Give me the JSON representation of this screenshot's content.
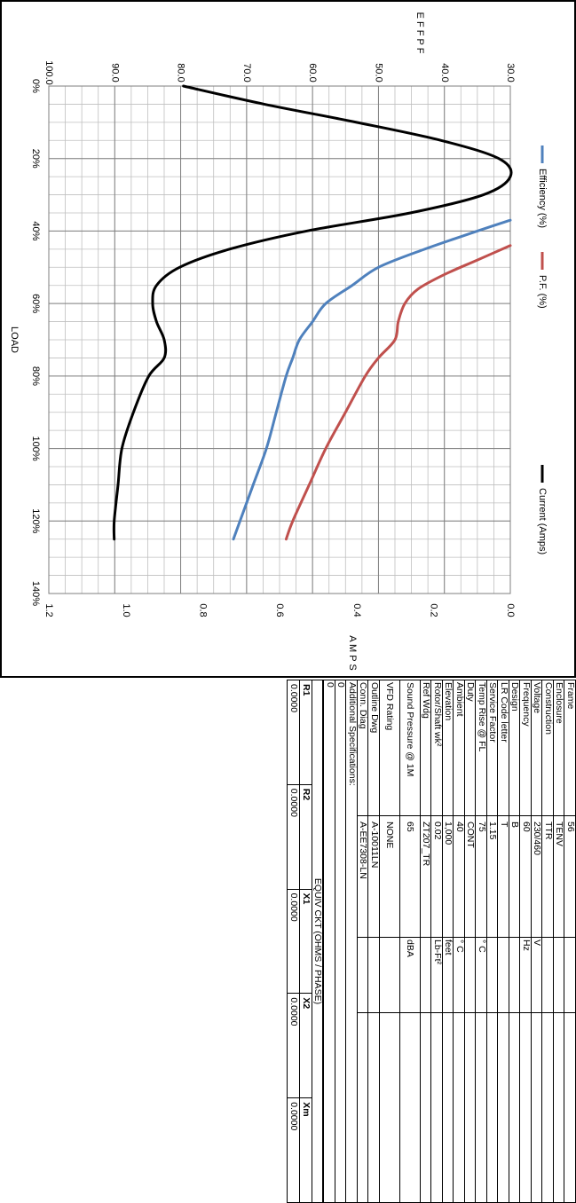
{
  "chart_data": {
    "type": "line",
    "xlabel": "LOAD",
    "y_left_label": "E F F   P F",
    "y_right_label": "A M P S",
    "x_ticks": [
      "0%",
      "20%",
      "40%",
      "60%",
      "80%",
      "100%",
      "120%",
      "140%"
    ],
    "xlim": [
      0,
      140
    ],
    "y_left_ticks": [
      "30.0",
      "40.0",
      "50.0",
      "60.0",
      "70.0",
      "80.0",
      "90.0",
      "100.0"
    ],
    "y_left_lim": [
      30,
      100
    ],
    "y_right_ticks": [
      "0.0",
      "0.2",
      "0.4",
      "0.6",
      "0.8",
      "1.0",
      "1.2"
    ],
    "y_right_lim": [
      0,
      1.2
    ],
    "legend": [
      "Efficiency (%)",
      "P.F. (%)",
      "Current (Amps)"
    ],
    "series": [
      {
        "name": "Efficiency (%)",
        "color": "#4f81bd",
        "axis": "left",
        "x": [
          37,
          40,
          45,
          50,
          55,
          60,
          65,
          70,
          75,
          80,
          90,
          100,
          110,
          120,
          125
        ],
        "y": [
          30,
          35,
          43,
          50,
          54,
          58,
          60,
          62,
          63,
          64,
          65.5,
          67,
          69,
          71,
          72
        ]
      },
      {
        "name": "P.F. (%)",
        "color": "#c0504d",
        "axis": "left",
        "x": [
          44,
          48,
          52,
          56,
          60,
          65,
          70,
          75,
          80,
          90,
          100,
          110,
          120,
          125
        ],
        "y": [
          30,
          35,
          40,
          44,
          46,
          47,
          47.5,
          50,
          52,
          55,
          58,
          60.5,
          63,
          64
        ]
      },
      {
        "name": "Current (Amps)",
        "color": "#000000",
        "axis": "right",
        "x": [
          0,
          5,
          10,
          15,
          20,
          25,
          30,
          35,
          40,
          45,
          50,
          55,
          60,
          65,
          70,
          75,
          80,
          90,
          100,
          110,
          120,
          125
        ],
        "y": [
          0.85,
          0.64,
          0.4,
          0.18,
          0.03,
          0.0,
          0.07,
          0.26,
          0.53,
          0.73,
          0.86,
          0.92,
          0.93,
          0.92,
          0.9,
          0.9,
          0.94,
          0.98,
          1.01,
          1.02,
          1.03,
          1.03
        ]
      }
    ]
  },
  "specs": {
    "rows": [
      {
        "label": "Frame",
        "value": "56",
        "unit": ""
      },
      {
        "label": "Enclosure",
        "value": "TENV",
        "unit": ""
      },
      {
        "label": "Construction",
        "value": "TTR",
        "unit": ""
      },
      {
        "label": "Voltage",
        "value": "230/460",
        "unit": "V"
      },
      {
        "label": "Frequency",
        "value": "60",
        "unit": "Hz"
      },
      {
        "label": "Design",
        "value": "B",
        "unit": ""
      },
      {
        "label": "LR Code letter",
        "value": "T",
        "unit": ""
      },
      {
        "label": "Service Factor",
        "value": "1.15",
        "unit": ""
      },
      {
        "label": "Temp Rise @ FL",
        "value": "75",
        "unit": "° C"
      },
      {
        "label": "Duty",
        "value": "CONT",
        "unit": ""
      },
      {
        "label": "Ambient",
        "value": "40",
        "unit": "° C"
      },
      {
        "label": "Elevation",
        "value": "1,000",
        "unit": "feet"
      },
      {
        "label": "Rotor/Shaft wk²",
        "value": "0.02",
        "unit": "Lb-Ft²"
      },
      {
        "label": "Ref Wdg",
        "value": "ZT207_TR",
        "unit": ""
      },
      {
        "label": "Sound Pressure   @ 1M",
        "value": "65",
        "unit": "dBA"
      },
      {
        "label": "VFD Rating",
        "value": "NONE",
        "unit": ""
      },
      {
        "label": "Outline Dwg",
        "value": "A-10011LN",
        "unit": ""
      },
      {
        "label": "Conn. Diag",
        "value": "A-EE7308-LN",
        "unit": ""
      }
    ],
    "additional_label": "Additional Specifications:",
    "additional_lines": [
      "0",
      "0"
    ]
  },
  "equiv": {
    "title": "EQUIV CKT (OHMS / PHASE)",
    "headers": [
      "R1",
      "R2",
      "X1",
      "X2",
      "Xm"
    ],
    "values": [
      "0.0000",
      "0.0000",
      "0.0000",
      "0.0000",
      "0.0000"
    ]
  }
}
